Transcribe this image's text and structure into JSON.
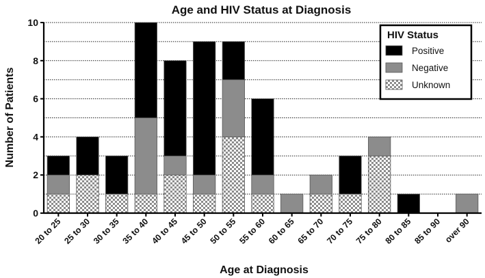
{
  "chart_data": {
    "type": "bar",
    "stacked": true,
    "title": "Age and  HIV Status at  Diagnosis",
    "xlabel": "Age at Diagnosis",
    "ylabel": "Number of  Patients",
    "ylim": [
      0,
      10
    ],
    "yticks": [
      0,
      2,
      4,
      6,
      8,
      10
    ],
    "grid": "horizontal dotted",
    "legend": {
      "title": "HIV  Status",
      "position": "top-right"
    },
    "categories": [
      "20 to 25",
      "25 to 30",
      "30 to 35",
      "35 to 40",
      "40 to 45",
      "45 to 50",
      "50 to 55",
      "55 to 60",
      "60 to 65",
      "65 to 70",
      "70 to 75",
      "75 to 80",
      "80 to 85",
      "85 to 90",
      "over 90"
    ],
    "series": [
      {
        "name": "Positive",
        "color": "#000000",
        "pattern": "solid",
        "values": [
          1,
          2,
          2,
          5,
          5,
          7,
          2,
          4,
          0,
          0,
          2,
          0,
          1,
          0,
          0
        ]
      },
      {
        "name": "Negative",
        "color": "#8c8c8c",
        "pattern": "solid",
        "values": [
          1,
          0,
          0,
          4,
          1,
          1,
          3,
          1,
          1,
          1,
          0,
          1,
          0,
          0,
          1
        ]
      },
      {
        "name": "Unknown",
        "color": "#ffffff",
        "pattern": "checker",
        "values": [
          1,
          2,
          1,
          1,
          2,
          1,
          4,
          1,
          0,
          1,
          1,
          3,
          0,
          0,
          0
        ]
      }
    ]
  }
}
